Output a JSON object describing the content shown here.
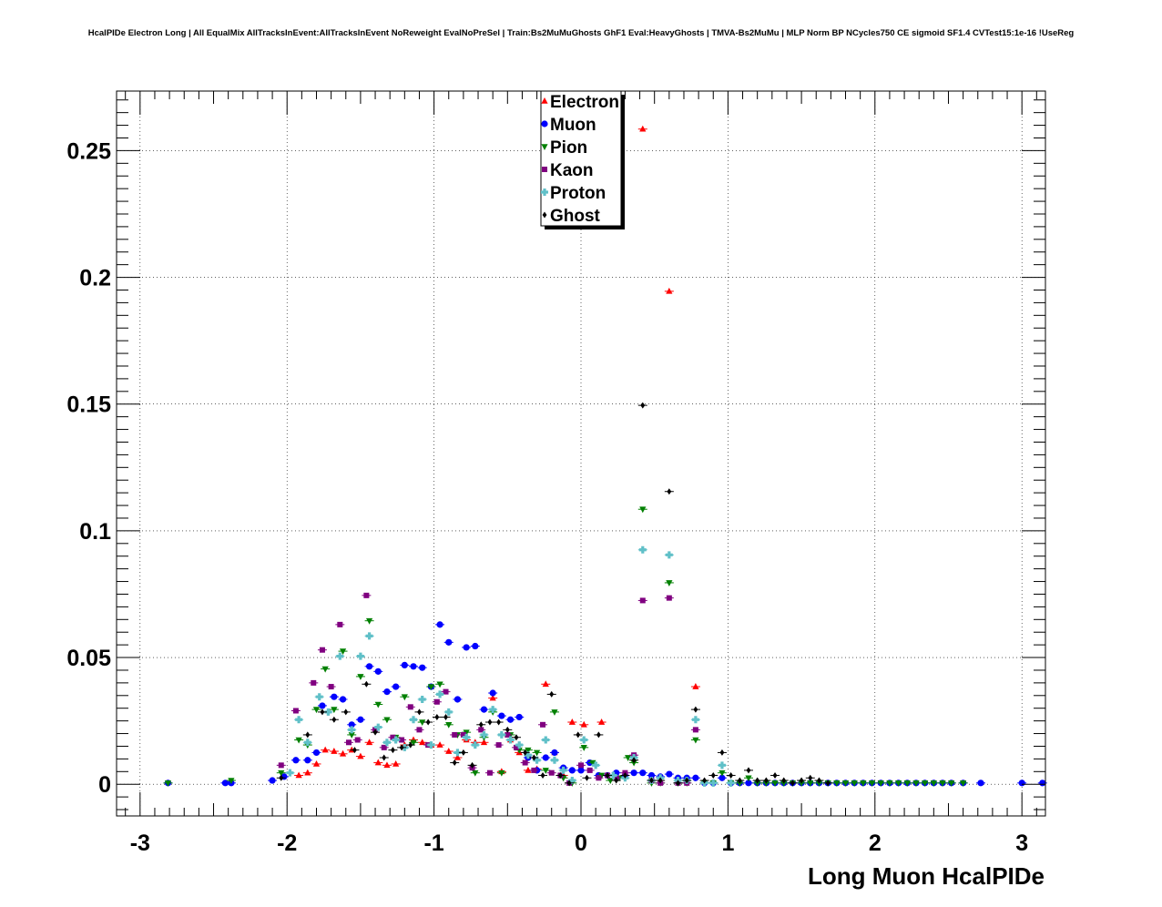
{
  "title": "HcalPIDe Electron Long | All EqualMix AllTracksInEvent:AllTracksInEvent NoReweight EvalNoPreSel | Train:Bs2MuMuGhosts GhF1 Eval:HeavyGhosts | TMVA-Bs2MuMu | MLP Norm BP NCycles750 CE sigmoid SF1.4 CVTest15:1e-16 !UseReg",
  "chart_data": {
    "type": "scatter",
    "xlabel": "Long Muon HcalPIDe",
    "ylabel": "",
    "xlim": [
      -3.16,
      3.16
    ],
    "ylim": [
      -0.0125,
      0.2735
    ],
    "x_ticks": [
      -3,
      -2,
      -1,
      0,
      1,
      2,
      3
    ],
    "x_tick_labels": [
      "-3",
      "-2",
      "-1",
      "0",
      "1",
      "2",
      "3"
    ],
    "y_ticks": [
      0,
      0.05,
      0.1,
      0.15,
      0.2,
      0.25
    ],
    "y_tick_labels": [
      "0",
      "0.05",
      "0.1",
      "0.15",
      "0.2",
      "0.25"
    ],
    "grid": true,
    "legend_position": "top-center",
    "series": [
      {
        "name": "Electron",
        "color": "#ff0000",
        "marker": "triangle-up",
        "x": [
          -1.92,
          -1.86,
          -1.8,
          -1.74,
          -1.68,
          -1.62,
          -1.56,
          -1.5,
          -1.44,
          -1.38,
          -1.32,
          -1.26,
          -1.2,
          -1.14,
          -1.08,
          -1.02,
          -0.96,
          -0.9,
          -0.84,
          -0.78,
          -0.72,
          -0.66,
          -0.6,
          -0.54,
          -0.48,
          -0.42,
          -0.36,
          -0.3,
          -0.24,
          -0.18,
          -0.12,
          -0.06,
          0.02,
          0.14,
          0.42,
          0.6,
          0.78
        ],
        "y": [
          0.0035,
          0.0045,
          0.008,
          0.0135,
          0.013,
          0.012,
          0.0135,
          0.011,
          0.0165,
          0.0085,
          0.0075,
          0.008,
          0.0155,
          0.0175,
          0.0165,
          0.0155,
          0.0155,
          0.013,
          0.0105,
          0.0175,
          0.0165,
          0.0165,
          0.034,
          0.005,
          0.0175,
          0.0125,
          0.0055,
          0.006,
          0.0395,
          0.0125,
          0.0035,
          0.0245,
          0.0235,
          0.0245,
          0.2585,
          0.1945,
          0.0385
        ]
      },
      {
        "name": "Muon",
        "color": "#0000ff",
        "marker": "circle",
        "x": [
          -2.81,
          -2.42,
          -2.38,
          -2.1,
          -2.02,
          -1.94,
          -1.86,
          -1.8,
          -1.76,
          -1.68,
          -1.62,
          -1.56,
          -1.5,
          -1.44,
          -1.38,
          -1.32,
          -1.26,
          -1.2,
          -1.14,
          -1.08,
          -1.02,
          -0.96,
          -0.9,
          -0.84,
          -0.78,
          -0.72,
          -0.66,
          -0.6,
          -0.54,
          -0.48,
          -0.42,
          -0.36,
          -0.3,
          -0.24,
          -0.18,
          -0.12,
          -0.06,
          0.0,
          0.06,
          0.12,
          0.18,
          0.24,
          0.3,
          0.36,
          0.42,
          0.48,
          0.54,
          0.6,
          0.66,
          0.72,
          0.78,
          0.84,
          0.9,
          0.96,
          1.02,
          1.08,
          1.14,
          1.2,
          1.26,
          1.32,
          1.38,
          1.44,
          1.5,
          1.56,
          1.62,
          1.68,
          1.74,
          1.8,
          1.86,
          1.92,
          1.98,
          2.04,
          2.1,
          2.16,
          2.22,
          2.28,
          2.34,
          2.4,
          2.46,
          2.52,
          2.6,
          2.72,
          3.0,
          3.14
        ],
        "y": [
          0.0005,
          0.0005,
          0.0005,
          0.0015,
          0.003,
          0.0095,
          0.0095,
          0.0125,
          0.031,
          0.0345,
          0.0335,
          0.0235,
          0.0255,
          0.0465,
          0.0445,
          0.0365,
          0.0385,
          0.047,
          0.0465,
          0.046,
          0.0385,
          0.063,
          0.056,
          0.0335,
          0.054,
          0.0545,
          0.0295,
          0.036,
          0.027,
          0.0255,
          0.0265,
          0.0105,
          0.0055,
          0.0105,
          0.0125,
          0.0065,
          0.0055,
          0.0055,
          0.0085,
          0.0035,
          0.0035,
          0.0045,
          0.0035,
          0.0045,
          0.0045,
          0.0035,
          0.003,
          0.004,
          0.0025,
          0.0025,
          0.0025,
          0.0005,
          0.0005,
          0.0025,
          0.0005,
          0.0005,
          0.0005,
          0.0005,
          0.0005,
          0.0005,
          0.0005,
          0.0005,
          0.0005,
          0.0005,
          0.0005,
          0.0005,
          0.0005,
          0.0005,
          0.0005,
          0.0005,
          0.0005,
          0.0005,
          0.0005,
          0.0005,
          0.0005,
          0.0005,
          0.0005,
          0.0005,
          0.0005,
          0.0005,
          0.0005,
          0.0005,
          0.0005,
          0.0005
        ]
      },
      {
        "name": "Pion",
        "color": "#008000",
        "marker": "triangle-down",
        "x": [
          -2.81,
          -2.38,
          -2.04,
          -1.92,
          -1.86,
          -1.8,
          -1.74,
          -1.68,
          -1.62,
          -1.56,
          -1.5,
          -1.44,
          -1.38,
          -1.32,
          -1.26,
          -1.2,
          -1.14,
          -1.08,
          -1.02,
          -0.96,
          -0.9,
          -0.84,
          -0.78,
          -0.72,
          -0.66,
          -0.6,
          -0.54,
          -0.48,
          -0.42,
          -0.36,
          -0.3,
          -0.24,
          -0.18,
          -0.12,
          -0.06,
          0.02,
          0.08,
          0.14,
          0.2,
          0.26,
          0.32,
          0.36,
          0.42,
          0.48,
          0.54,
          0.6,
          0.66,
          0.72,
          0.78,
          0.84,
          0.9,
          0.96,
          1.02,
          1.08,
          1.14,
          1.2,
          1.26,
          1.32,
          1.38,
          1.44,
          1.5,
          1.56,
          1.62,
          1.68,
          1.74,
          1.8,
          1.86,
          1.92,
          1.98,
          2.04,
          2.1,
          2.16,
          2.22,
          2.28,
          2.34,
          2.4,
          2.46,
          2.52,
          2.6
        ],
        "y": [
          0.0005,
          0.0015,
          0.0045,
          0.0175,
          0.0155,
          0.0295,
          0.0455,
          0.0295,
          0.0525,
          0.0195,
          0.0425,
          0.0645,
          0.0315,
          0.0255,
          0.0185,
          0.0345,
          0.0165,
          0.0245,
          0.0385,
          0.0395,
          0.0235,
          0.0195,
          0.0205,
          0.0045,
          0.0185,
          0.0285,
          0.0045,
          0.0195,
          0.0135,
          0.0135,
          0.0125,
          0.0055,
          0.0285,
          0.0025,
          0.0005,
          0.0145,
          0.0085,
          0.0035,
          0.0015,
          0.0025,
          0.0105,
          0.0085,
          0.1085,
          0.0005,
          0.0005,
          0.0795,
          0.0005,
          0.0005,
          0.0175,
          0.0005,
          0.0005,
          0.0045,
          0.0005,
          0.0005,
          0.0025,
          0.0005,
          0.0005,
          0.0005,
          0.0005,
          0.0005,
          0.0005,
          0.0005,
          0.0005,
          0.0005,
          0.0005,
          0.0005,
          0.0005,
          0.0005,
          0.0005,
          0.0005,
          0.0005,
          0.0005,
          0.0005,
          0.0005,
          0.0005,
          0.0005,
          0.0005,
          0.0005,
          0.0005
        ]
      },
      {
        "name": "Kaon",
        "color": "#800080",
        "marker": "square",
        "x": [
          -2.04,
          -1.94,
          -1.82,
          -1.76,
          -1.7,
          -1.64,
          -1.58,
          -1.52,
          -1.46,
          -1.4,
          -1.34,
          -1.28,
          -1.22,
          -1.16,
          -1.1,
          -1.04,
          -0.98,
          -0.92,
          -0.86,
          -0.8,
          -0.74,
          -0.68,
          -0.62,
          -0.56,
          -0.5,
          -0.44,
          -0.38,
          -0.32,
          -0.26,
          -0.2,
          -0.14,
          -0.08,
          0.0,
          0.06,
          0.12,
          0.18,
          0.24,
          0.3,
          0.36,
          0.42,
          0.48,
          0.54,
          0.6,
          0.66,
          0.72,
          0.78
        ],
        "y": [
          0.0075,
          0.029,
          0.04,
          0.053,
          0.0385,
          0.063,
          0.0165,
          0.0175,
          0.0745,
          0.0215,
          0.0145,
          0.0185,
          0.0175,
          0.0305,
          0.0215,
          0.0155,
          0.0325,
          0.0365,
          0.0195,
          0.0195,
          0.0065,
          0.0215,
          0.0045,
          0.0155,
          0.0195,
          0.0145,
          0.0085,
          0.0055,
          0.0235,
          0.0045,
          0.0035,
          0.0005,
          0.0075,
          0.0055,
          0.0025,
          0.0035,
          0.0025,
          0.0045,
          0.0115,
          0.0725,
          0.0015,
          0.0005,
          0.0735,
          0.0005,
          0.0005,
          0.0215
        ]
      },
      {
        "name": "Proton",
        "color": "#60c0c8",
        "marker": "cross",
        "x": [
          -1.98,
          -1.92,
          -1.86,
          -1.78,
          -1.72,
          -1.64,
          -1.56,
          -1.5,
          -1.44,
          -1.38,
          -1.32,
          -1.26,
          -1.2,
          -1.14,
          -1.08,
          -1.02,
          -0.96,
          -0.9,
          -0.84,
          -0.78,
          -0.72,
          -0.66,
          -0.6,
          -0.54,
          -0.48,
          -0.42,
          -0.36,
          -0.3,
          -0.24,
          -0.18,
          -0.12,
          -0.06,
          0.02,
          0.1,
          0.22,
          0.3,
          0.36,
          0.42,
          0.48,
          0.54,
          0.6,
          0.66,
          0.72,
          0.78,
          0.84,
          0.9,
          0.96,
          1.02
        ],
        "y": [
          0.0045,
          0.0255,
          0.0165,
          0.0345,
          0.0285,
          0.0505,
          0.0215,
          0.0505,
          0.0585,
          0.0225,
          0.0165,
          0.0175,
          0.0145,
          0.0255,
          0.0335,
          0.0155,
          0.0355,
          0.0285,
          0.0125,
          0.0185,
          0.0155,
          0.0195,
          0.0295,
          0.0195,
          0.0175,
          0.0155,
          0.0115,
          0.0095,
          0.0175,
          0.0095,
          0.0055,
          0.0015,
          0.0175,
          0.0075,
          0.0035,
          0.0025,
          0.0105,
          0.0925,
          0.0015,
          0.0025,
          0.0905,
          0.0015,
          0.0015,
          0.0255,
          0.0005,
          0.0005,
          0.0075,
          0.0005
        ]
      },
      {
        "name": "Ghost",
        "color": "#000000",
        "marker": "diamond",
        "x": [
          -2.04,
          -1.86,
          -1.76,
          -1.68,
          -1.6,
          -1.54,
          -1.46,
          -1.4,
          -1.34,
          -1.28,
          -1.22,
          -1.16,
          -1.1,
          -1.04,
          -0.98,
          -0.92,
          -0.86,
          -0.8,
          -0.74,
          -0.68,
          -0.62,
          -0.56,
          -0.5,
          -0.44,
          -0.38,
          -0.32,
          -0.26,
          -0.2,
          -0.14,
          -0.08,
          -0.02,
          0.04,
          0.12,
          0.18,
          0.24,
          0.3,
          0.36,
          0.42,
          0.48,
          0.54,
          0.6,
          0.66,
          0.72,
          0.78,
          0.84,
          0.9,
          0.96,
          1.02,
          1.08,
          1.14,
          1.2,
          1.26,
          1.32,
          1.38,
          1.44,
          1.5,
          1.56,
          1.62,
          1.68
        ],
        "y": [
          0.0025,
          0.0195,
          0.0285,
          0.0255,
          0.0285,
          0.0135,
          0.0395,
          0.0205,
          0.0105,
          0.0135,
          0.0145,
          0.0155,
          0.0285,
          0.0245,
          0.0265,
          0.0265,
          0.0085,
          0.0125,
          0.0075,
          0.0235,
          0.0245,
          0.0245,
          0.0215,
          0.0185,
          0.0125,
          0.0105,
          0.0035,
          0.0355,
          0.0035,
          0.0005,
          0.0195,
          0.0025,
          0.0195,
          0.0035,
          0.0015,
          0.0035,
          0.0095,
          0.1495,
          0.0015,
          0.0015,
          0.1155,
          0.0005,
          0.0015,
          0.0295,
          0.0015,
          0.0035,
          0.0125,
          0.0035,
          0.0015,
          0.0055,
          0.0015,
          0.0015,
          0.0035,
          0.0015,
          0.0005,
          0.0015,
          0.0025,
          0.0015,
          0.0005
        ]
      }
    ]
  }
}
